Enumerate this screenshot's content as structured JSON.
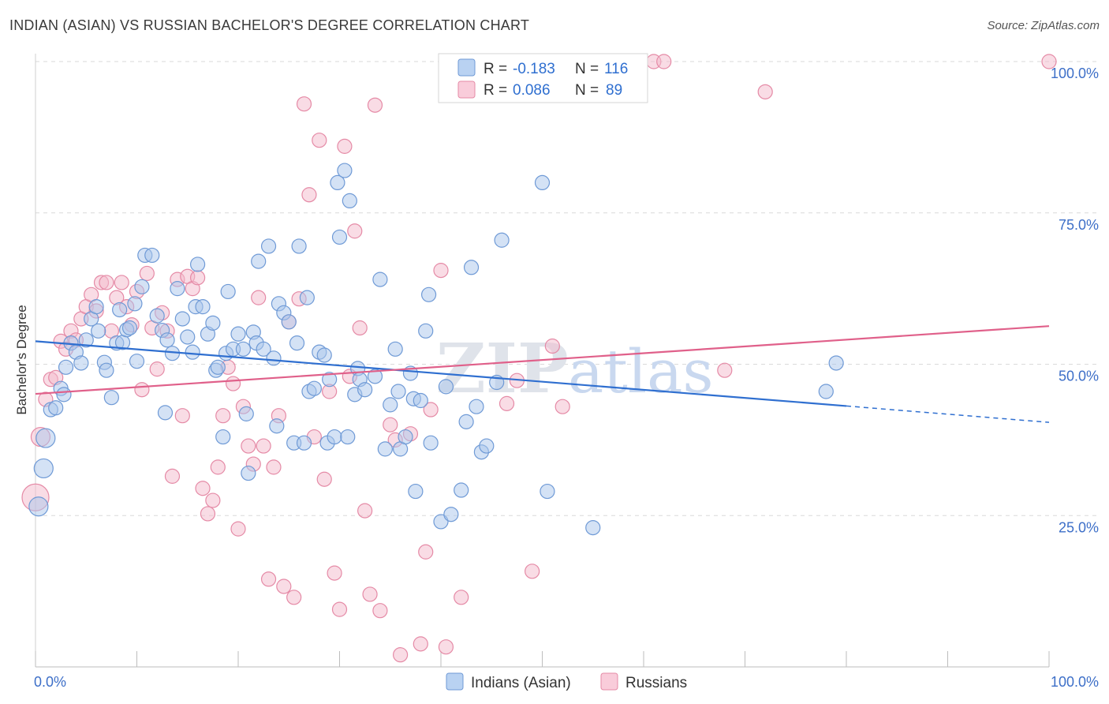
{
  "header": {
    "title": "INDIAN (ASIAN) VS RUSSIAN BACHELOR'S DEGREE CORRELATION CHART",
    "source": "Source: ZipAtlas.com"
  },
  "watermark": {
    "zip": "ZIP",
    "atlas": "atlas"
  },
  "colors": {
    "blue_fill": "#a9c6ec",
    "blue_stroke": "#6f9ad6",
    "blue_line": "#2f6fd0",
    "pink_fill": "#f4b9cb",
    "pink_stroke": "#e58aa6",
    "pink_line": "#e0608a",
    "grid": "#d9d9d9",
    "tick_text": "#3d6fc8"
  },
  "legend": {
    "rows": [
      {
        "r_label": "R =",
        "r_value": "-0.183",
        "n_label": "N =",
        "n_value": "116",
        "color": "blue"
      },
      {
        "r_label": "R =",
        "r_value": "0.086",
        "n_label": "N =",
        "n_value": "89",
        "color": "pink"
      }
    ]
  },
  "chart_data": {
    "type": "scatter",
    "title": "INDIAN (ASIAN) VS RUSSIAN BACHELOR'S DEGREE CORRELATION CHART",
    "xlabel": "",
    "ylabel": "Bachelor's Degree",
    "xlim": [
      0,
      100
    ],
    "ylim": [
      0,
      100
    ],
    "x_tick_labels": [
      "0.0%",
      "100.0%"
    ],
    "y_ticks": [
      25,
      50,
      75,
      100
    ],
    "y_tick_labels": [
      "25.0%",
      "50.0%",
      "75.0%",
      "100.0%"
    ],
    "grid": true,
    "series": [
      {
        "name": "Indians (Asian)",
        "color": "blue",
        "r": -0.183,
        "n": 116,
        "trend": {
          "x_start": 0,
          "y_start": 53.8,
          "x_solid_end": 80,
          "y_solid_end": 43.1,
          "x_end": 100,
          "y_end": 40.4
        },
        "points": [
          [
            0.3,
            26.5,
            1
          ],
          [
            0.8,
            32.8,
            1
          ],
          [
            1.0,
            37.8,
            1
          ],
          [
            1.5,
            42.5,
            0
          ],
          [
            2,
            42.8,
            0
          ],
          [
            2.5,
            46,
            0
          ],
          [
            2.8,
            45,
            0
          ],
          [
            3,
            49.5,
            0
          ],
          [
            3.5,
            53.5,
            0
          ],
          [
            4,
            52,
            0
          ],
          [
            4.5,
            50.2,
            0
          ],
          [
            5,
            54,
            0
          ],
          [
            5.5,
            57.5,
            0
          ],
          [
            6,
            59.5,
            0
          ],
          [
            6.2,
            55.5,
            0
          ],
          [
            6.8,
            50.3,
            0
          ],
          [
            7,
            49,
            0
          ],
          [
            7.5,
            44.5,
            0
          ],
          [
            8,
            53.5,
            0
          ],
          [
            8.3,
            59,
            0
          ],
          [
            8.6,
            53.6,
            0
          ],
          [
            9,
            55.7,
            0
          ],
          [
            9.3,
            56,
            0
          ],
          [
            9.8,
            60,
            0
          ],
          [
            10,
            50.5,
            0
          ],
          [
            10.5,
            62.8,
            0
          ],
          [
            10.8,
            68,
            0
          ],
          [
            11.5,
            68,
            0
          ],
          [
            12,
            58,
            0
          ],
          [
            12.5,
            55.6,
            0
          ],
          [
            12.8,
            42,
            0
          ],
          [
            13,
            54,
            0
          ],
          [
            13.5,
            51.8,
            0
          ],
          [
            14,
            62.5,
            0
          ],
          [
            14.5,
            57.5,
            0
          ],
          [
            15,
            54.5,
            0
          ],
          [
            15.5,
            52,
            0
          ],
          [
            15.8,
            59.5,
            0
          ],
          [
            16,
            66.5,
            0
          ],
          [
            16.5,
            59.5,
            0
          ],
          [
            17,
            55,
            0
          ],
          [
            17.5,
            56.8,
            0
          ],
          [
            17.8,
            49,
            0
          ],
          [
            18,
            49.5,
            0
          ],
          [
            18.5,
            38,
            0
          ],
          [
            18.8,
            51.8,
            0
          ],
          [
            19,
            62,
            0
          ],
          [
            19.5,
            52.5,
            0
          ],
          [
            20,
            55,
            0
          ],
          [
            20.5,
            52.5,
            0
          ],
          [
            20.8,
            41.8,
            0
          ],
          [
            21,
            32,
            0
          ],
          [
            21.5,
            55.3,
            0
          ],
          [
            21.8,
            53.5,
            0
          ],
          [
            22,
            67,
            0
          ],
          [
            22.5,
            52.5,
            0
          ],
          [
            23,
            69.5,
            0
          ],
          [
            23.5,
            51,
            0
          ],
          [
            23.8,
            39.8,
            0
          ],
          [
            24,
            60,
            0
          ],
          [
            24.5,
            58.5,
            0
          ],
          [
            25,
            57,
            0
          ],
          [
            25.5,
            37,
            0
          ],
          [
            25.8,
            53.5,
            0
          ],
          [
            26,
            69.5,
            0
          ],
          [
            26.5,
            37,
            0
          ],
          [
            26.8,
            61,
            0
          ],
          [
            27,
            45.5,
            0
          ],
          [
            27.5,
            46,
            0
          ],
          [
            28,
            52,
            0
          ],
          [
            28.5,
            51.5,
            0
          ],
          [
            28.8,
            37,
            0
          ],
          [
            29,
            47.5,
            0
          ],
          [
            29.5,
            38,
            0
          ],
          [
            29.8,
            80,
            0
          ],
          [
            30,
            71,
            0
          ],
          [
            30.5,
            82,
            0
          ],
          [
            30.8,
            38,
            0
          ],
          [
            31,
            77,
            0
          ],
          [
            31.5,
            45,
            0
          ],
          [
            31.8,
            49.3,
            0
          ],
          [
            32,
            47.5,
            0
          ],
          [
            32.5,
            45.8,
            0
          ],
          [
            33.5,
            48,
            0
          ],
          [
            34,
            64,
            0
          ],
          [
            34.5,
            36,
            0
          ],
          [
            35,
            43.3,
            0
          ],
          [
            35.5,
            52.5,
            0
          ],
          [
            35.8,
            45.5,
            0
          ],
          [
            36,
            36,
            0
          ],
          [
            36.5,
            38,
            0
          ],
          [
            37,
            48.5,
            0
          ],
          [
            37.3,
            44.3,
            0
          ],
          [
            37.5,
            29,
            0
          ],
          [
            38,
            44,
            0
          ],
          [
            38.5,
            55.5,
            0
          ],
          [
            38.8,
            61.5,
            0
          ],
          [
            39,
            37,
            0
          ],
          [
            40,
            24,
            0
          ],
          [
            40.5,
            46.3,
            0
          ],
          [
            41,
            25.2,
            0
          ],
          [
            42,
            29.2,
            0
          ],
          [
            42.5,
            40.5,
            0
          ],
          [
            43,
            66,
            0
          ],
          [
            43.5,
            43,
            0
          ],
          [
            44,
            35.5,
            0
          ],
          [
            44.5,
            36.5,
            0
          ],
          [
            45.5,
            47,
            0
          ],
          [
            46,
            70.5,
            0
          ],
          [
            50,
            80,
            0
          ],
          [
            50.5,
            29,
            0
          ],
          [
            55,
            23,
            0
          ],
          [
            78,
            45.5,
            0
          ],
          [
            79,
            50.2,
            0
          ]
        ]
      },
      {
        "name": "Russians",
        "color": "pink",
        "r": 0.086,
        "n": 89,
        "trend": {
          "x_start": 0,
          "y_start": 45.1,
          "x_end": 100,
          "y_end": 56.3
        },
        "points": [
          [
            0,
            28,
            2
          ],
          [
            0.5,
            38,
            1
          ],
          [
            1,
            44.2,
            0
          ],
          [
            1.5,
            47.5,
            0
          ],
          [
            2,
            47.8,
            0
          ],
          [
            2.5,
            53.8,
            0
          ],
          [
            3,
            52.5,
            0
          ],
          [
            3.5,
            55.5,
            0
          ],
          [
            4,
            54,
            0
          ],
          [
            4.5,
            57.5,
            0
          ],
          [
            5,
            59.5,
            0
          ],
          [
            5.5,
            61.5,
            0
          ],
          [
            6,
            58.8,
            0
          ],
          [
            6.5,
            63.5,
            0
          ],
          [
            7,
            63.5,
            0
          ],
          [
            7.5,
            55.5,
            0
          ],
          [
            8,
            61,
            0
          ],
          [
            8.5,
            63.5,
            0
          ],
          [
            9,
            59.5,
            0
          ],
          [
            9.5,
            56.5,
            0
          ],
          [
            10,
            62,
            0
          ],
          [
            10.5,
            45.8,
            0
          ],
          [
            11,
            65,
            0
          ],
          [
            11.5,
            56,
            0
          ],
          [
            12,
            49.2,
            0
          ],
          [
            12.5,
            58.5,
            0
          ],
          [
            13,
            55.5,
            0
          ],
          [
            13.5,
            31.5,
            0
          ],
          [
            14,
            64,
            0
          ],
          [
            14.5,
            41.5,
            0
          ],
          [
            15,
            64.5,
            0
          ],
          [
            15.5,
            62.5,
            0
          ],
          [
            16,
            64.3,
            0
          ],
          [
            16.5,
            29.5,
            0
          ],
          [
            17,
            25.3,
            0
          ],
          [
            17.5,
            27.5,
            0
          ],
          [
            18,
            33,
            0
          ],
          [
            18.5,
            41.5,
            0
          ],
          [
            19,
            49.5,
            0
          ],
          [
            19.5,
            46.8,
            0
          ],
          [
            20,
            22.8,
            0
          ],
          [
            20.5,
            43,
            0
          ],
          [
            21,
            36.5,
            0
          ],
          [
            21.5,
            33.5,
            0
          ],
          [
            22,
            61,
            0
          ],
          [
            22.5,
            36.5,
            0
          ],
          [
            23,
            14.5,
            0
          ],
          [
            23.5,
            33,
            0
          ],
          [
            24,
            41.5,
            0
          ],
          [
            24.5,
            13.3,
            0
          ],
          [
            25,
            57,
            0
          ],
          [
            25.5,
            11.5,
            0
          ],
          [
            26,
            60.8,
            0
          ],
          [
            26.5,
            93,
            0
          ],
          [
            27,
            78,
            0
          ],
          [
            27.5,
            38,
            0
          ],
          [
            28,
            87,
            0
          ],
          [
            28.5,
            31,
            0
          ],
          [
            29,
            45.5,
            0
          ],
          [
            29.5,
            15.5,
            0
          ],
          [
            30,
            9.5,
            0
          ],
          [
            30.5,
            86,
            0
          ],
          [
            31,
            48,
            0
          ],
          [
            31.5,
            72,
            0
          ],
          [
            32,
            56,
            0
          ],
          [
            32.5,
            25.8,
            0
          ],
          [
            33,
            12,
            0
          ],
          [
            33.5,
            92.8,
            0
          ],
          [
            34,
            9.3,
            0
          ],
          [
            35,
            40,
            0
          ],
          [
            35.5,
            37.5,
            0
          ],
          [
            36,
            2,
            0
          ],
          [
            37,
            38.5,
            0
          ],
          [
            38,
            3.8,
            0
          ],
          [
            38.5,
            19,
            0
          ],
          [
            39,
            42.5,
            0
          ],
          [
            40,
            65.5,
            0
          ],
          [
            40.5,
            3.3,
            0
          ],
          [
            42,
            11.5,
            0
          ],
          [
            46.5,
            43.5,
            0
          ],
          [
            47.5,
            47.3,
            0
          ],
          [
            49,
            15.8,
            0
          ],
          [
            51,
            53,
            0
          ],
          [
            52,
            43,
            0
          ],
          [
            61,
            100,
            0
          ],
          [
            62,
            100,
            0
          ],
          [
            68,
            49,
            0
          ],
          [
            72,
            95,
            0
          ],
          [
            100,
            100,
            0
          ]
        ]
      }
    ]
  },
  "bottom_legend": {
    "items": [
      {
        "label": "Indians (Asian)",
        "color": "blue"
      },
      {
        "label": "Russians",
        "color": "pink"
      }
    ]
  }
}
